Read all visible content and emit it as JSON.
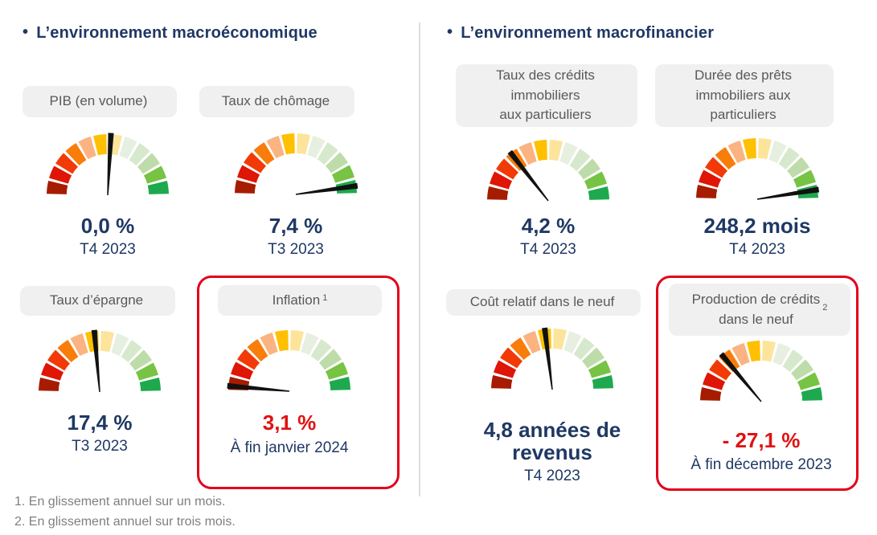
{
  "colors": {
    "heading_navy": "#1F3864",
    "value_navy": "#1F3864",
    "value_red": "#E01212",
    "highlight_border_red": "#E3001B",
    "chip_background": "#F0F0F0",
    "chip_text": "#595959",
    "footnote_grey": "#7F7F7F",
    "divider_grey": "#DEDEDE"
  },
  "gauge": {
    "segment_colors": [
      "#A61C00",
      "#DF1505",
      "#F23A06",
      "#F87D0B",
      "#FBB381",
      "#FFC002",
      "#FCE49B",
      "#E7F0E0",
      "#D7E9CD",
      "#BDDCA9",
      "#77C343",
      "#1EA94E"
    ],
    "needle_color": "#111111",
    "segments": 12,
    "arc_degrees": 180
  },
  "columns": [
    {
      "title": "L’environnement macroéconomique",
      "bullet": "•",
      "cards": [
        {
          "label": "PIB (en volume)",
          "needle_deg": 87,
          "value": "0,0 %",
          "period": "T4 2023"
        },
        {
          "label": "Taux de chômage",
          "needle_deg": 8,
          "value": "7,4 %",
          "period": "T3 2023"
        },
        {
          "label": "Taux d’épargne",
          "needle_deg": 95,
          "value": "17,4 %",
          "period": "T3 2023"
        },
        {
          "label": "Inflation",
          "label_sup": "1",
          "needle_deg": 175,
          "value": "3,1 %",
          "value_color": "#E01212",
          "period": "À fin janvier 2024",
          "highlighted": true
        }
      ]
    },
    {
      "title": "L’environnement macrofinancier",
      "bullet": "•",
      "cards": [
        {
          "label": "Taux des crédits\nimmobiliers\naux particuliers",
          "needle_deg": 128,
          "value": "4,2 %",
          "period": "T4 2023"
        },
        {
          "label": "Durée des prêts\nimmobiliers aux\nparticuliers",
          "needle_deg": 9,
          "value": "248,2 mois",
          "period": "T4 2023"
        },
        {
          "label": "Coût relatif dans le neuf",
          "needle_deg": 97,
          "value": "4,8 années de\nrevenus",
          "period": "T4 2023"
        },
        {
          "label": "Production de crédits\ndans le neuf",
          "label_sup": "2",
          "needle_deg": 130,
          "value": "- 27,1 %",
          "value_color": "#E01212",
          "period": "À fin décembre 2023",
          "highlighted": true
        }
      ]
    }
  ],
  "footnotes": [
    "1. En glissement annuel sur un mois.",
    "2. En glissement annuel sur trois mois."
  ],
  "chart_data": [
    {
      "type": "gauge",
      "title": "PIB (en volume)",
      "value_label": "0,0 %",
      "value_numeric": 0.0,
      "unit": "%",
      "period": "T4 2023",
      "needle_angle_deg": 87,
      "scale": "180° semicircle, 12 segments from dark red (left) to green (right)",
      "legend_position": "none"
    },
    {
      "type": "gauge",
      "title": "Taux de chômage",
      "value_label": "7,4 %",
      "value_numeric": 7.4,
      "unit": "%",
      "period": "T3 2023",
      "needle_angle_deg": 8,
      "scale": "180° semicircle, 12 segments from dark red (left) to green (right)",
      "legend_position": "none"
    },
    {
      "type": "gauge",
      "title": "Taux d’épargne",
      "value_label": "17,4 %",
      "value_numeric": 17.4,
      "unit": "%",
      "period": "T3 2023",
      "needle_angle_deg": 95,
      "scale": "180° semicircle, 12 segments from dark red (left) to green (right)",
      "legend_position": "none"
    },
    {
      "type": "gauge",
      "title": "Inflation (1)",
      "value_label": "3,1 %",
      "value_numeric": 3.1,
      "unit": "%",
      "period": "À fin janvier 2024",
      "needle_angle_deg": 175,
      "highlighted": true,
      "scale": "180° semicircle, 12 segments from dark red (left) to green (right)",
      "legend_position": "none"
    },
    {
      "type": "gauge",
      "title": "Taux des crédits immobiliers aux particuliers",
      "value_label": "4,2 %",
      "value_numeric": 4.2,
      "unit": "%",
      "period": "T4 2023",
      "needle_angle_deg": 128,
      "scale": "180° semicircle, 12 segments from dark red (left) to green (right)",
      "legend_position": "none"
    },
    {
      "type": "gauge",
      "title": "Durée des prêts immobiliers aux particuliers",
      "value_label": "248,2 mois",
      "value_numeric": 248.2,
      "unit": "mois",
      "period": "T4 2023",
      "needle_angle_deg": 9,
      "scale": "180° semicircle, 12 segments from dark red (left) to green (right)",
      "legend_position": "none"
    },
    {
      "type": "gauge",
      "title": "Coût relatif dans le neuf",
      "value_label": "4,8 années de revenus",
      "value_numeric": 4.8,
      "unit": "années de revenus",
      "period": "T4 2023",
      "needle_angle_deg": 97,
      "scale": "180° semicircle, 12 segments from dark red (left) to green (right)",
      "legend_position": "none"
    },
    {
      "type": "gauge",
      "title": "Production de crédits dans le neuf (2)",
      "value_label": "- 27,1 %",
      "value_numeric": -27.1,
      "unit": "%",
      "period": "À fin décembre 2023",
      "needle_angle_deg": 130,
      "highlighted": true,
      "scale": "180° semicircle, 12 segments from dark red (left) to green (right)",
      "legend_position": "none"
    }
  ]
}
